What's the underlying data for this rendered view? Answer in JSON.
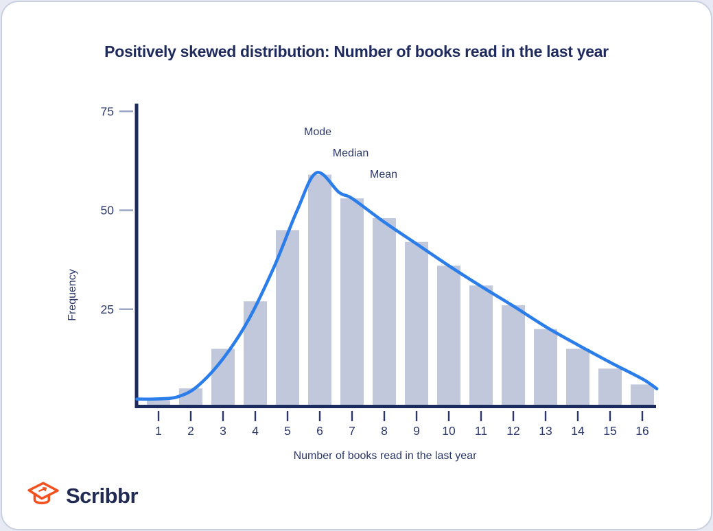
{
  "header": {
    "title": "Positively skewed distribution: Number of books read in the last year",
    "title_color": "#1f2a5c"
  },
  "footer": {
    "brand": "Scribbr",
    "brand_color": "#222b54",
    "icon": "graduation-cap-icon",
    "icon_color": "#f4511e"
  },
  "chart_data": {
    "type": "bar",
    "subtype": "histogram with density curve overlay",
    "title": "Positively skewed distribution: Number of books read in the last year",
    "xlabel": "Number of books read in the last year",
    "ylabel": "Frequency",
    "categories": [
      1,
      2,
      3,
      4,
      5,
      6,
      7,
      8,
      9,
      10,
      11,
      12,
      13,
      14,
      15,
      16
    ],
    "values": [
      2,
      5,
      15,
      27,
      45,
      59,
      53,
      48,
      42,
      36,
      31,
      26,
      20,
      15,
      10,
      6
    ],
    "y_ticks": [
      25,
      50,
      75
    ],
    "ylim": [
      0,
      76
    ],
    "grid": false,
    "legend": "none",
    "curve_points": [
      [
        0.33,
        2.3
      ],
      [
        1.0,
        2.35
      ],
      [
        1.6,
        2.9
      ],
      [
        2.2,
        5.5
      ],
      [
        3.0,
        12.5
      ],
      [
        3.8,
        22.5
      ],
      [
        4.6,
        36
      ],
      [
        5.3,
        50
      ],
      [
        5.9,
        59.5
      ],
      [
        6.6,
        54.5
      ],
      [
        7.0,
        53
      ],
      [
        8.0,
        47
      ],
      [
        9.0,
        41.5
      ],
      [
        10.0,
        36
      ],
      [
        11.0,
        30.8
      ],
      [
        12.0,
        25.8
      ],
      [
        13.0,
        20.6
      ],
      [
        14.0,
        16
      ],
      [
        15.0,
        11.6
      ],
      [
        16.0,
        7.4
      ],
      [
        16.45,
        4.9
      ]
    ],
    "annotations": [
      {
        "text": "Mode",
        "x": 460,
        "y": 194
      },
      {
        "text": "Median",
        "x": 508,
        "y": 225
      },
      {
        "text": "Mean",
        "x": 556,
        "y": 256
      }
    ],
    "colors": {
      "bar": "#c2c8db",
      "curve": "#2b7de9",
      "axis": "#1c2a5e",
      "tick_text": "#2b3768",
      "grid_tick": "#9ba5c4"
    }
  }
}
